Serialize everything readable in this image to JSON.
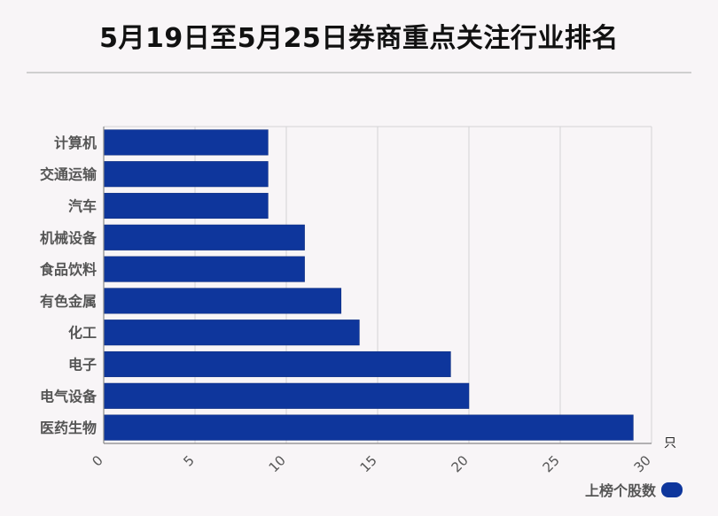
{
  "chart_data": {
    "type": "bar",
    "orientation": "horizontal",
    "title": "5月19日至5月25日券商重点关注行业排名",
    "categories": [
      "计算机",
      "交通运输",
      "汽车",
      "机械设备",
      "食品饮料",
      "有色金属",
      "化工",
      "电子",
      "电气设备",
      "医药生物"
    ],
    "series": [
      {
        "name": "上榜个股数",
        "values": [
          9,
          9,
          9,
          11,
          11,
          13,
          14,
          19,
          20,
          29
        ],
        "color": "#0e369c"
      }
    ],
    "xlim": [
      0,
      30
    ],
    "x_ticks": [
      0,
      5,
      10,
      15,
      20,
      25,
      30
    ],
    "x_unit": "只",
    "grid": true,
    "legend_position": "bottom-right"
  },
  "colors": {
    "bar": "#0e369c",
    "grid": "#d4d4d4",
    "axis": "#888888",
    "background": "#f8f5f7"
  }
}
